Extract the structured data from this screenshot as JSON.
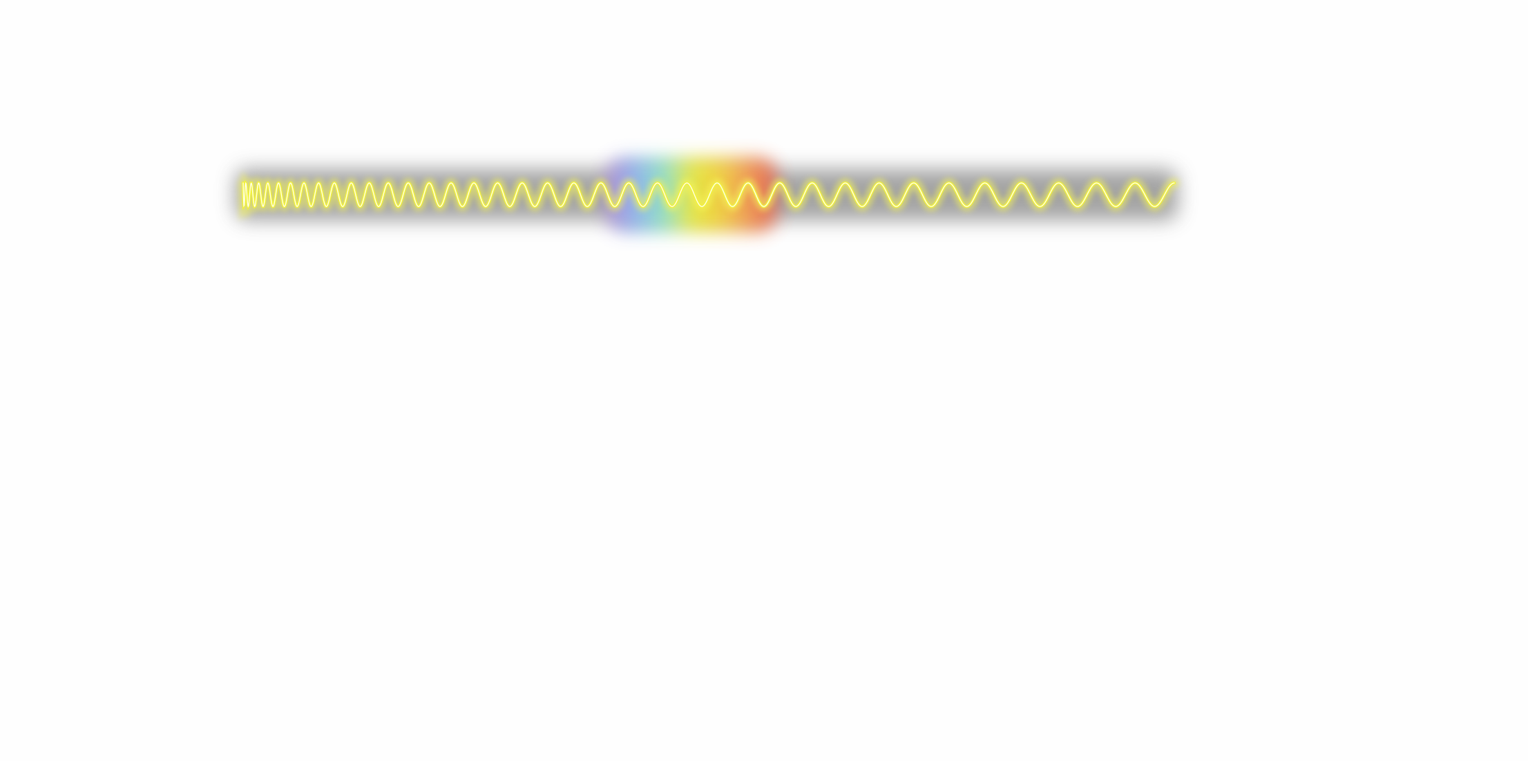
{
  "diagram": {
    "type": "electromagnetic-spectrum-wave",
    "wave": {
      "color": "#f2f23a",
      "highlight_color": "#ffffff",
      "glow_color": "#f6f55a",
      "cycles_shown": 38,
      "frequency_trend": "decreasing-left-to-right"
    },
    "band": {
      "color": "#8a8a8a",
      "style": "blurred-dark-strip"
    },
    "visible_spectrum": {
      "colors": [
        "#b58ad8",
        "#8fb4f0",
        "#8ee3c8",
        "#e9ec3c",
        "#f5d23a",
        "#f49a52",
        "#e8594a"
      ]
    }
  }
}
